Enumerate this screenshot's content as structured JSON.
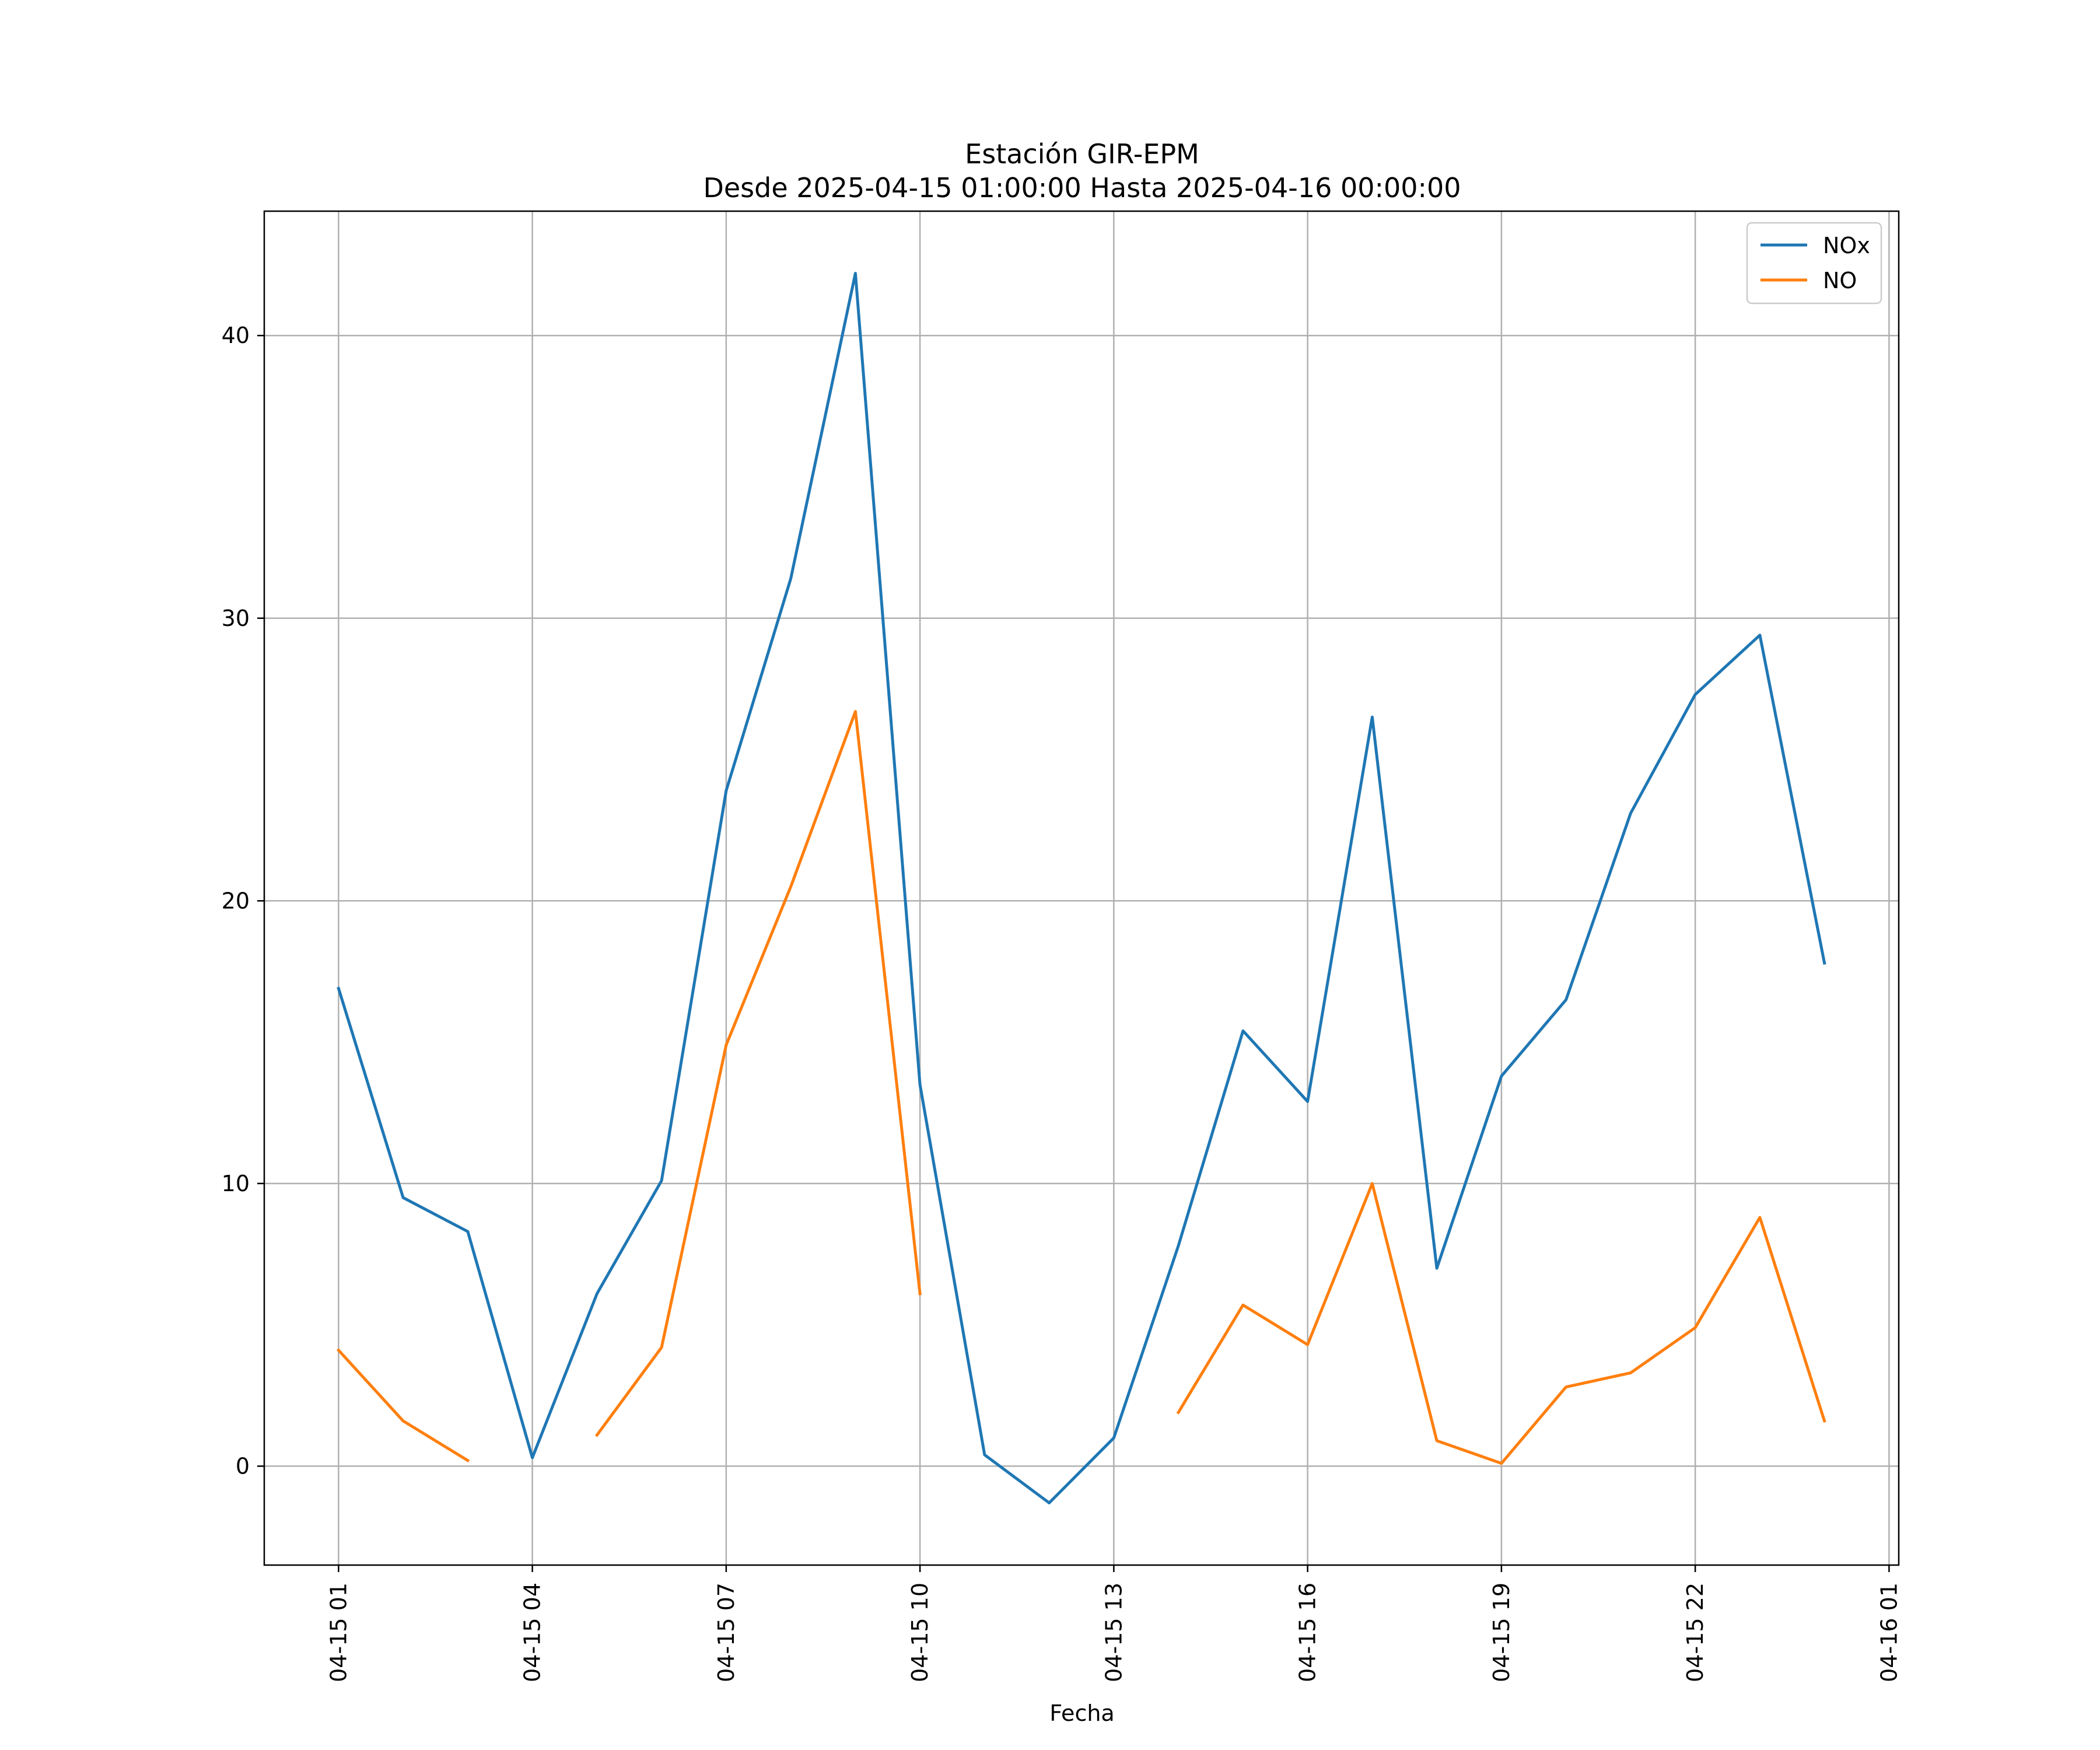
{
  "chart_data": {
    "type": "line",
    "title": "Estación GIR-EPM",
    "subtitle": "Desde 2025-04-15 01:00:00 Hasta 2025-04-16 00:00:00",
    "xlabel": "Fecha",
    "ylabel": "",
    "x": [
      "2025-04-15 01:00",
      "2025-04-15 02:00",
      "2025-04-15 03:00",
      "2025-04-15 04:00",
      "2025-04-15 05:00",
      "2025-04-15 06:00",
      "2025-04-15 07:00",
      "2025-04-15 08:00",
      "2025-04-15 09:00",
      "2025-04-15 10:00",
      "2025-04-15 11:00",
      "2025-04-15 12:00",
      "2025-04-15 13:00",
      "2025-04-15 14:00",
      "2025-04-15 15:00",
      "2025-04-15 16:00",
      "2025-04-15 17:00",
      "2025-04-15 18:00",
      "2025-04-15 19:00",
      "2025-04-15 20:00",
      "2025-04-15 21:00",
      "2025-04-15 22:00",
      "2025-04-15 23:00",
      "2025-04-16 00:00"
    ],
    "series": [
      {
        "name": "NOx",
        "color": "#1f77b4",
        "values": [
          16.9,
          9.5,
          8.3,
          0.3,
          6.1,
          10.1,
          23.9,
          31.4,
          42.2,
          13.5,
          0.4,
          -1.3,
          1.0,
          7.8,
          15.4,
          12.9,
          26.5,
          7.0,
          13.8,
          16.5,
          23.1,
          27.3,
          29.4,
          17.8
        ]
      },
      {
        "name": "NO",
        "color": "#ff7f0e",
        "values": [
          4.1,
          1.6,
          0.2,
          null,
          1.1,
          4.2,
          14.9,
          20.5,
          26.7,
          6.1,
          null,
          null,
          null,
          1.9,
          5.7,
          4.3,
          10.0,
          0.9,
          0.1,
          2.8,
          3.3,
          4.9,
          8.8,
          1.6
        ]
      }
    ],
    "ylim": [
      -3.5,
      44.4
    ],
    "yticks": [
      0,
      10,
      20,
      30,
      40
    ],
    "xticks": [
      "04-15 01",
      "04-15 04",
      "04-15 07",
      "04-15 10",
      "04-15 13",
      "04-15 16",
      "04-15 19",
      "04-15 22",
      "04-16 01"
    ],
    "xlim": [
      "2025-04-14 23:51",
      "2025-04-16 01:09"
    ],
    "grid": true,
    "legend_position": "top-right"
  }
}
